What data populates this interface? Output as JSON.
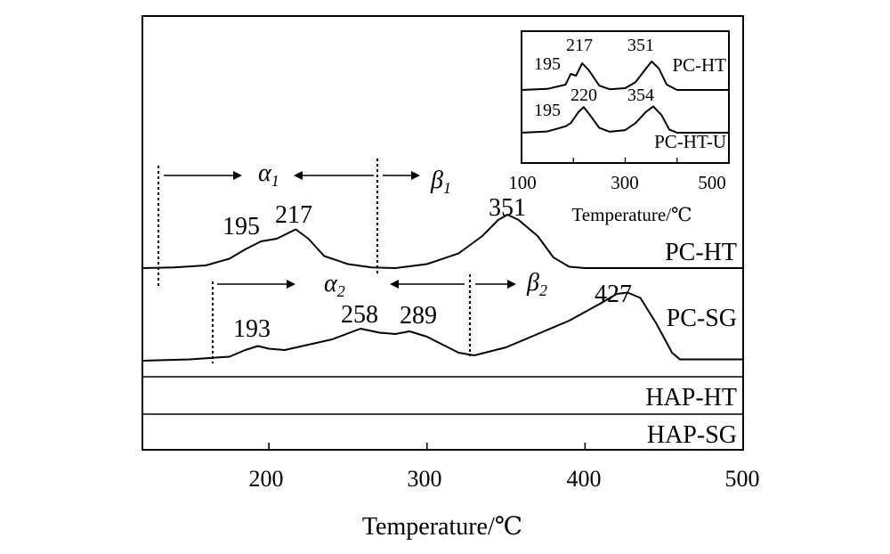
{
  "chart_data": [
    {
      "type": "line",
      "xlabel": "Temperature/℃",
      "xlim": [
        120,
        500
      ],
      "x_ticks": [
        "200",
        "300",
        "400",
        "500"
      ],
      "series": [
        {
          "name": "PC-HT",
          "points": [
            [
              120,
              0
            ],
            [
              140,
              0.005
            ],
            [
              160,
              0.02
            ],
            [
              175,
              0.07
            ],
            [
              185,
              0.14
            ],
            [
              195,
              0.2
            ],
            [
              205,
              0.22
            ],
            [
              217,
              0.29
            ],
            [
              225,
              0.22
            ],
            [
              235,
              0.09
            ],
            [
              250,
              0.03
            ],
            [
              265,
              0.005
            ],
            [
              280,
              0
            ],
            [
              300,
              0.03
            ],
            [
              320,
              0.11
            ],
            [
              335,
              0.24
            ],
            [
              345,
              0.36
            ],
            [
              351,
              0.4
            ],
            [
              358,
              0.36
            ],
            [
              370,
              0.24
            ],
            [
              380,
              0.08
            ],
            [
              390,
              0.01
            ],
            [
              400,
              0
            ],
            [
              500,
              0
            ]
          ],
          "peak_labels": [
            "195",
            "217",
            "351"
          ]
        },
        {
          "name": "PC-SG",
          "points": [
            [
              120,
              0
            ],
            [
              150,
              0.01
            ],
            [
              175,
              0.03
            ],
            [
              185,
              0.08
            ],
            [
              193,
              0.11
            ],
            [
              200,
              0.09
            ],
            [
              210,
              0.08
            ],
            [
              225,
              0.12
            ],
            [
              240,
              0.16
            ],
            [
              258,
              0.24
            ],
            [
              270,
              0.21
            ],
            [
              280,
              0.2
            ],
            [
              289,
              0.22
            ],
            [
              300,
              0.18
            ],
            [
              310,
              0.12
            ],
            [
              320,
              0.06
            ],
            [
              330,
              0.04
            ],
            [
              350,
              0.1
            ],
            [
              370,
              0.2
            ],
            [
              390,
              0.3
            ],
            [
              410,
              0.43
            ],
            [
              420,
              0.5
            ],
            [
              427,
              0.51
            ],
            [
              435,
              0.47
            ],
            [
              445,
              0.28
            ],
            [
              455,
              0.06
            ],
            [
              460,
              0.01
            ],
            [
              500,
              0.01
            ]
          ],
          "peak_labels": [
            "193",
            "258",
            "289",
            "427"
          ]
        },
        {
          "name": "HAP-HT",
          "points": [
            [
              120,
              0
            ],
            [
              500,
              0
            ]
          ]
        },
        {
          "name": "HAP-SG",
          "points": [
            [
              120,
              0
            ],
            [
              500,
              0
            ]
          ]
        }
      ],
      "region_labels": [
        "α1",
        "β1",
        "α2",
        "β2"
      ],
      "region_boundaries": [
        [
          135,
          270
        ],
        [
          169,
          327
        ]
      ]
    },
    {
      "type": "line",
      "xlabel": "Temperature/℃",
      "xlim": [
        100,
        500
      ],
      "x_ticks": [
        "100",
        "300",
        "500"
      ],
      "series": [
        {
          "name": "PC-HT",
          "points": [
            [
              100,
              0
            ],
            [
              150,
              0.03
            ],
            [
              185,
              0.15
            ],
            [
              195,
              0.45
            ],
            [
              205,
              0.4
            ],
            [
              217,
              0.75
            ],
            [
              230,
              0.55
            ],
            [
              250,
              0.12
            ],
            [
              270,
              0.02
            ],
            [
              300,
              0.05
            ],
            [
              320,
              0.22
            ],
            [
              340,
              0.6
            ],
            [
              351,
              0.8
            ],
            [
              365,
              0.6
            ],
            [
              380,
              0.15
            ],
            [
              400,
              0
            ],
            [
              500,
              0
            ]
          ],
          "peak_labels": [
            "195",
            "217",
            "351"
          ]
        },
        {
          "name": "PC-HT-U",
          "points": [
            [
              100,
              0
            ],
            [
              150,
              0.04
            ],
            [
              185,
              0.2
            ],
            [
              195,
              0.3
            ],
            [
              210,
              0.65
            ],
            [
              220,
              0.8
            ],
            [
              232,
              0.55
            ],
            [
              250,
              0.15
            ],
            [
              270,
              0.03
            ],
            [
              300,
              0.08
            ],
            [
              320,
              0.3
            ],
            [
              340,
              0.65
            ],
            [
              354,
              0.82
            ],
            [
              370,
              0.55
            ],
            [
              385,
              0.1
            ],
            [
              400,
              0
            ],
            [
              500,
              0
            ]
          ],
          "peak_labels": [
            "195",
            "220",
            "354"
          ]
        }
      ]
    }
  ]
}
